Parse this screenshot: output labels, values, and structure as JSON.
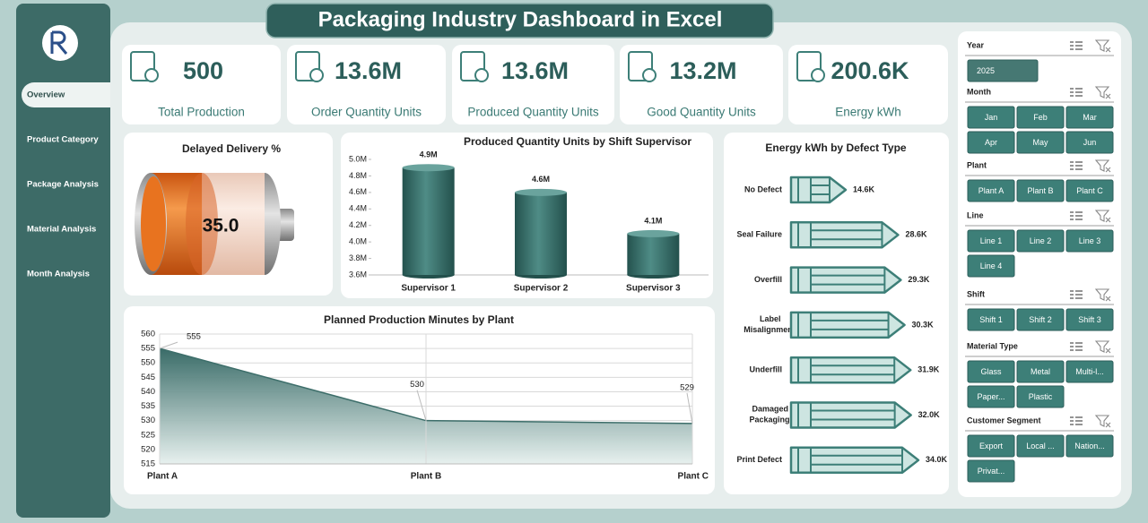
{
  "header": {
    "title": "Packaging Industry Dashboard in Excel"
  },
  "sidebar": {
    "items": [
      "Overview",
      "Product Category",
      "Package Analysis",
      "Material Analysis",
      "Month Analysis"
    ]
  },
  "kpis": [
    {
      "value": "500",
      "label": "Total Production"
    },
    {
      "value": "13.6M",
      "label": "Order Quantity Units"
    },
    {
      "value": "13.6M",
      "label": "Produced Quantity Units"
    },
    {
      "value": "13.2M",
      "label": "Good Quantity Units"
    },
    {
      "value": "200.6K",
      "label": "Energy kWh"
    }
  ],
  "chart_data": [
    {
      "type": "battery",
      "title": "Delayed Delivery %",
      "value": 35,
      "value_label": "35.0",
      "xlim": [
        0,
        100
      ],
      "color": "#e8731f"
    },
    {
      "type": "bar",
      "title": "Produced Quantity Units by Shift Supervisor",
      "categories": [
        "Supervisor 1",
        "Supervisor 2",
        "Supervisor 3"
      ],
      "values": [
        4900000,
        4600000,
        4100000
      ],
      "value_labels": [
        "4.9M",
        "4.6M",
        "4.1M"
      ],
      "color": "#336b66",
      "ylim": [
        3600000,
        5000000
      ],
      "yticks": [
        {
          "value": 3600000,
          "label": "3.6M"
        },
        {
          "value": 3800000,
          "label": "3.8M"
        },
        {
          "value": 4000000,
          "label": "4.0M"
        },
        {
          "value": 4200000,
          "label": "4.2M"
        },
        {
          "value": 4400000,
          "label": "4.4M"
        },
        {
          "value": 4600000,
          "label": "4.6M"
        },
        {
          "value": 4800000,
          "label": "4.8M"
        },
        {
          "value": 5000000,
          "label": "5.0M"
        }
      ]
    },
    {
      "type": "hbar",
      "title": "Energy kWh by Defect Type",
      "categories": [
        "No Defect",
        "Seal Failure",
        "Overfill",
        "Label Misalignment",
        "Underfill",
        "Damaged Packaging",
        "Print Defect"
      ],
      "values": [
        14600,
        28600,
        29300,
        30300,
        31900,
        32000,
        34000
      ],
      "value_labels": [
        "14.6K",
        "28.6K",
        "29.3K",
        "30.3K",
        "31.9K",
        "32.0K",
        "34.0K"
      ],
      "color": "#cde5e1"
    },
    {
      "type": "area",
      "title": "Planned Production Minutes by Plant",
      "categories": [
        "Plant A",
        "Plant B",
        "Plant C"
      ],
      "values": [
        555,
        530,
        529
      ],
      "color": "#3d6e6a",
      "ylim": [
        515,
        560
      ],
      "yticks": [
        515,
        520,
        525,
        530,
        535,
        540,
        545,
        550,
        555,
        560
      ],
      "grid": true
    }
  ],
  "slicers": [
    {
      "title": "Year",
      "items": [
        "2025"
      ]
    },
    {
      "title": "Month",
      "items": [
        "Jan",
        "Feb",
        "Mar",
        "Apr",
        "May",
        "Jun"
      ]
    },
    {
      "title": "Plant",
      "items": [
        "Plant A",
        "Plant B",
        "Plant C"
      ]
    },
    {
      "title": "Line",
      "items": [
        "Line 1",
        "Line 2",
        "Line 3",
        "Line 4"
      ]
    },
    {
      "title": "Shift",
      "items": [
        "Shift 1",
        "Shift 2",
        "Shift 3"
      ]
    },
    {
      "title": "Material Type",
      "items": [
        "Glass",
        "Metal",
        "Multi-l...",
        "Paper...",
        "Plastic"
      ]
    },
    {
      "title": "Customer Segment",
      "items": [
        "Export",
        "Local ...",
        "Nation...",
        "Privat..."
      ]
    }
  ]
}
